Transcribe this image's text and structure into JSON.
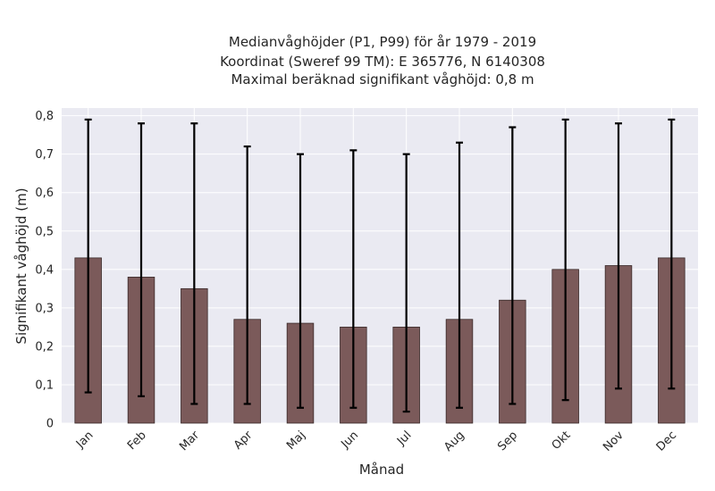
{
  "chart_data": {
    "type": "bar",
    "title_lines": [
      "Medianvåghöjder (P1, P99) för år 1979 - 2019",
      "Koordinat (Sweref 99 TM): E 365776, N 6140308",
      "Maximal beräknad signifikant våghöjd: 0,8 m"
    ],
    "xlabel": "Månad",
    "ylabel": "Signifikant våghöjd (m)",
    "categories": [
      "Jan",
      "Feb",
      "Mar",
      "Apr",
      "Maj",
      "Jun",
      "Jul",
      "Aug",
      "Sep",
      "Okt",
      "Nov",
      "Dec"
    ],
    "values": [
      0.43,
      0.38,
      0.35,
      0.27,
      0.26,
      0.25,
      0.25,
      0.27,
      0.32,
      0.4,
      0.41,
      0.43
    ],
    "p1": [
      0.08,
      0.07,
      0.05,
      0.05,
      0.04,
      0.04,
      0.03,
      0.04,
      0.05,
      0.06,
      0.09,
      0.09
    ],
    "p99": [
      0.79,
      0.78,
      0.78,
      0.72,
      0.7,
      0.71,
      0.7,
      0.73,
      0.77,
      0.79,
      0.78,
      0.79
    ],
    "ylim": [
      0,
      0.82
    ],
    "yticks": [
      {
        "value": 0,
        "label": "0"
      },
      {
        "value": 0.1,
        "label": "0,1"
      },
      {
        "value": 0.2,
        "label": "0,2"
      },
      {
        "value": 0.3,
        "label": "0,3"
      },
      {
        "value": 0.4,
        "label": "0,4"
      },
      {
        "value": 0.5,
        "label": "0,5"
      },
      {
        "value": 0.6,
        "label": "0,6"
      },
      {
        "value": 0.7,
        "label": "0,7"
      },
      {
        "value": 0.8,
        "label": "0,8"
      }
    ],
    "grid": true,
    "colors": {
      "bar": "#7b5a5a",
      "bar_edge": "#3a2a2a",
      "error": "#000000",
      "plot_bg": "#eaeaf2",
      "grid": "#ffffff"
    }
  }
}
